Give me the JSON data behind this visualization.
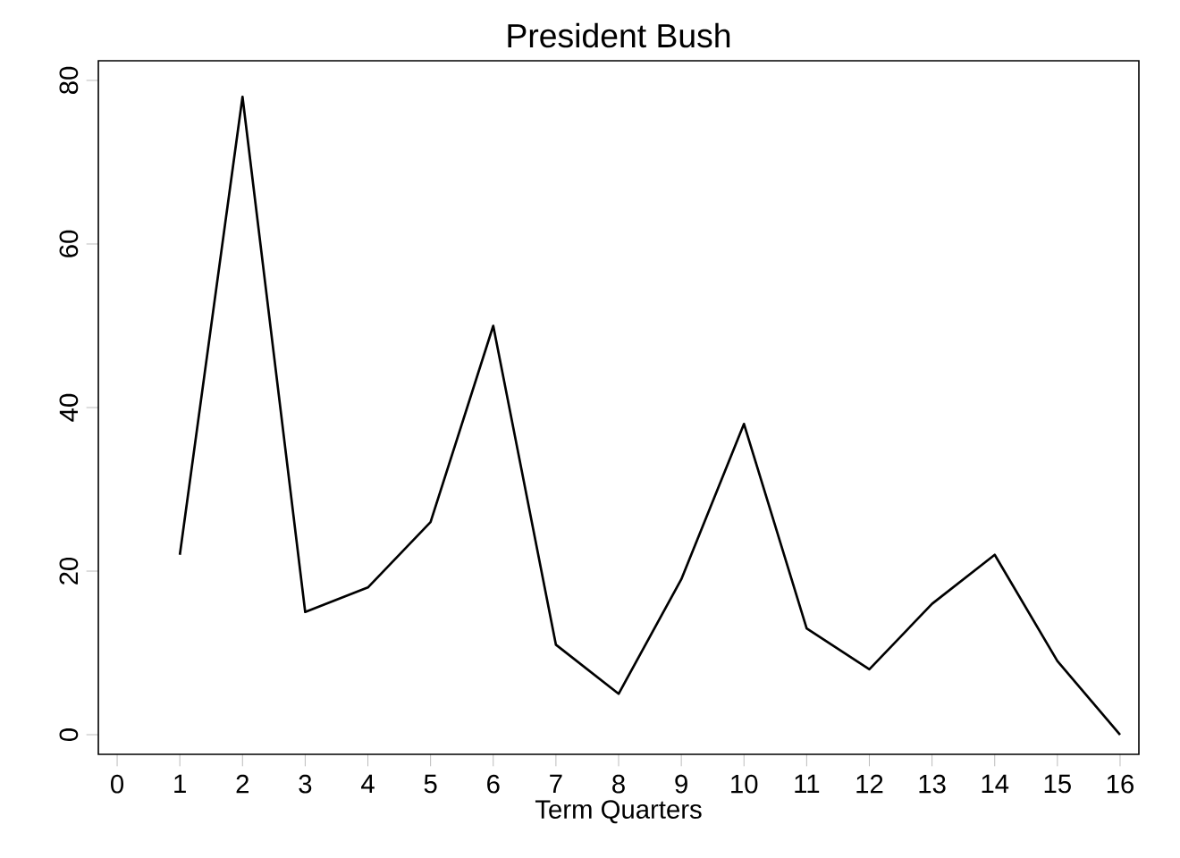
{
  "chart_data": {
    "type": "line",
    "title": "President Bush",
    "xlabel": "Term Quarters",
    "x": [
      1,
      2,
      3,
      4,
      5,
      6,
      7,
      8,
      9,
      10,
      11,
      12,
      13,
      14,
      15,
      16
    ],
    "series": [
      {
        "color": "#000000",
        "values": [
          22,
          78,
          15,
          18,
          26,
          50,
          11,
          5,
          19,
          38,
          13,
          8,
          16,
          22,
          9,
          0
        ]
      }
    ],
    "xlim": [
      -0.3,
      16.3
    ],
    "ylim": [
      -2.4,
      82.4
    ],
    "xticks": [
      0,
      1,
      2,
      3,
      4,
      5,
      6,
      7,
      8,
      9,
      10,
      11,
      12,
      13,
      14,
      15,
      16
    ],
    "yticks": [
      0,
      20,
      40,
      60,
      80
    ],
    "grid": false,
    "marker": "none",
    "line_style": "solid"
  }
}
